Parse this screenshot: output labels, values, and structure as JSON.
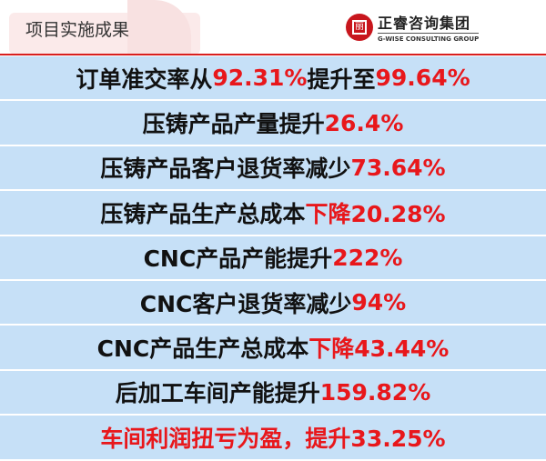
{
  "header": {
    "title": "项目实施成果",
    "logo_cn": "正睿咨询集团",
    "logo_en": "G-WISE CONSULTING GROUP",
    "accent": "#d81e1e"
  },
  "rows": [
    [
      {
        "t": "订单准交率从",
        "r": false
      },
      {
        "t": "92.31%",
        "r": true
      },
      {
        "t": "提升至",
        "r": false
      },
      {
        "t": "99.64%",
        "r": true
      }
    ],
    [
      {
        "t": "压铸产品产量提升",
        "r": false
      },
      {
        "t": "26.4%",
        "r": true
      }
    ],
    [
      {
        "t": "压铸产品客户退货率减少",
        "r": false
      },
      {
        "t": "73.64%",
        "r": true
      }
    ],
    [
      {
        "t": "压铸产品生产总成本",
        "r": false
      },
      {
        "t": "下降20.28%",
        "r": true
      }
    ],
    [
      {
        "t": "CNC产品产能提升",
        "r": false
      },
      {
        "t": "222%",
        "r": true
      }
    ],
    [
      {
        "t": "CNC客户退货率减少",
        "r": false
      },
      {
        "t": "94%",
        "r": true
      }
    ],
    [
      {
        "t": "CNC产品生产总成本",
        "r": false
      },
      {
        "t": "下降43.44%",
        "r": true
      }
    ],
    [
      {
        "t": "后加工车间产能提升",
        "r": false
      },
      {
        "t": "159.82%",
        "r": true
      }
    ],
    [
      {
        "t": "车间利润扭亏为盈，提升33.25%",
        "r": true
      }
    ]
  ]
}
